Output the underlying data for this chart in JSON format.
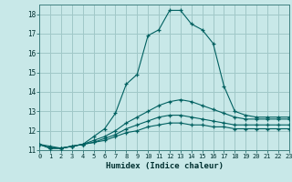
{
  "xlabel": "Humidex (Indice chaleur)",
  "background_color": "#c8e8e8",
  "grid_color": "#a0c8c8",
  "line_color": "#006060",
  "xmin": 0,
  "xmax": 23,
  "ymin": 11,
  "ymax": 18.5,
  "yticks": [
    11,
    12,
    13,
    14,
    15,
    16,
    17,
    18
  ],
  "xtick_labels": [
    "0",
    "1",
    "2",
    "3",
    "4",
    "5",
    "6",
    "7",
    "8",
    "9",
    "10",
    "11",
    "12",
    "13",
    "14",
    "15",
    "16",
    "17",
    "18",
    "19",
    "20",
    "21",
    "22",
    "23"
  ],
  "series": [
    [
      11.3,
      11.2,
      11.1,
      11.2,
      11.3,
      11.7,
      12.1,
      12.9,
      14.4,
      14.9,
      16.9,
      17.2,
      18.2,
      18.2,
      17.5,
      17.2,
      16.5,
      14.3,
      13.0,
      12.8,
      12.7,
      12.7,
      12.7,
      12.7
    ],
    [
      11.3,
      11.1,
      11.1,
      11.2,
      11.3,
      11.5,
      11.7,
      12.0,
      12.4,
      12.7,
      13.0,
      13.3,
      13.5,
      13.6,
      13.5,
      13.3,
      13.1,
      12.9,
      12.7,
      12.6,
      12.6,
      12.6,
      12.6,
      12.6
    ],
    [
      11.3,
      11.1,
      11.1,
      11.2,
      11.3,
      11.4,
      11.6,
      11.8,
      12.1,
      12.3,
      12.5,
      12.7,
      12.8,
      12.8,
      12.7,
      12.6,
      12.5,
      12.4,
      12.3,
      12.3,
      12.3,
      12.3,
      12.3,
      12.3
    ],
    [
      11.3,
      11.1,
      11.1,
      11.2,
      11.3,
      11.4,
      11.5,
      11.7,
      11.9,
      12.0,
      12.2,
      12.3,
      12.4,
      12.4,
      12.3,
      12.3,
      12.2,
      12.2,
      12.1,
      12.1,
      12.1,
      12.1,
      12.1,
      12.1
    ]
  ]
}
